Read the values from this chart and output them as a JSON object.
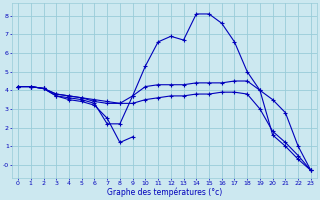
{
  "title": "Graphe des températures (°c)",
  "background_color": "#cce8f0",
  "grid_color": "#99ccd9",
  "line_color": "#0000bb",
  "xlim": [
    -0.5,
    23.5
  ],
  "ylim": [
    -0.7,
    8.7
  ],
  "xticks": [
    0,
    1,
    2,
    3,
    4,
    5,
    6,
    7,
    8,
    9,
    10,
    11,
    12,
    13,
    14,
    15,
    16,
    17,
    18,
    19,
    20,
    21,
    22,
    23
  ],
  "yticks": [
    0,
    1,
    2,
    3,
    4,
    5,
    6,
    7,
    8
  ],
  "series": [
    {
      "x": [
        0,
        1,
        2,
        3,
        4,
        5,
        6,
        7,
        8,
        9,
        10,
        11,
        12,
        13,
        14,
        15,
        16,
        17,
        18,
        19,
        20,
        21,
        22,
        23
      ],
      "y": [
        4.2,
        4.2,
        4.1,
        3.7,
        3.6,
        3.5,
        3.3,
        2.2,
        2.2,
        3.7,
        5.3,
        6.6,
        6.9,
        6.7,
        8.1,
        8.1,
        7.6,
        6.6,
        5.0,
        4.0,
        3.5,
        2.8,
        1.0,
        -0.3
      ]
    },
    {
      "x": [
        0,
        1,
        2,
        3,
        4,
        5,
        6,
        7,
        8,
        9
      ],
      "y": [
        4.2,
        4.2,
        4.1,
        3.7,
        3.5,
        3.4,
        3.2,
        2.5,
        1.2,
        1.5
      ]
    },
    {
      "x": [
        0,
        1,
        2,
        3,
        4,
        5,
        6,
        7,
        8,
        9,
        10,
        11,
        12,
        13,
        14,
        15,
        16,
        17,
        18,
        19,
        20,
        21,
        22,
        23
      ],
      "y": [
        4.2,
        4.2,
        4.1,
        3.8,
        3.7,
        3.6,
        3.4,
        3.3,
        3.3,
        3.7,
        4.2,
        4.3,
        4.3,
        4.3,
        4.4,
        4.4,
        4.4,
        4.5,
        4.5,
        4.0,
        1.6,
        1.0,
        0.3,
        -0.3
      ]
    },
    {
      "x": [
        0,
        1,
        2,
        3,
        4,
        5,
        6,
        7,
        8,
        9,
        10,
        11,
        12,
        13,
        14,
        15,
        16,
        17,
        18,
        19,
        20,
        21,
        22,
        23
      ],
      "y": [
        4.2,
        4.2,
        4.1,
        3.8,
        3.7,
        3.6,
        3.5,
        3.4,
        3.3,
        3.3,
        3.5,
        3.6,
        3.7,
        3.7,
        3.8,
        3.8,
        3.9,
        3.9,
        3.8,
        3.0,
        1.8,
        1.2,
        0.5,
        -0.3
      ]
    }
  ]
}
